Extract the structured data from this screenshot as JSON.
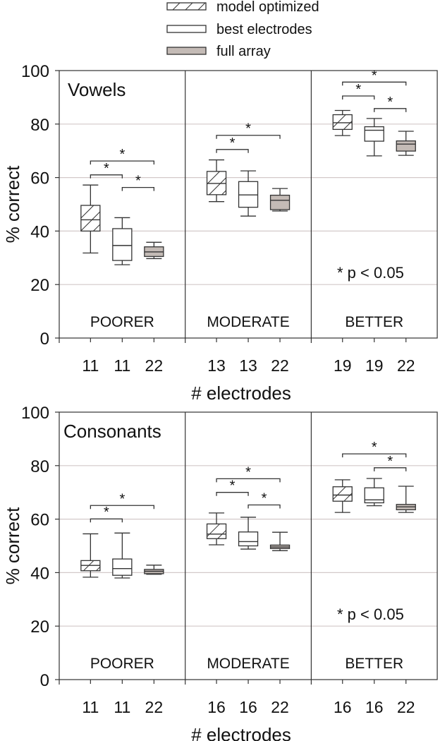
{
  "chart_data": {
    "type": "box",
    "legend": {
      "placement": "top-center",
      "entries": [
        {
          "name": "model optimized",
          "fill": "#ffffff",
          "hatch": true
        },
        {
          "name": "best electrodes",
          "fill": "#ffffff",
          "hatch": false
        },
        {
          "name": "full array",
          "fill": "#c4bbb6",
          "hatch": false
        }
      ]
    },
    "ylabel": "% correct",
    "xlabel": "# electrodes",
    "ylim": [
      0,
      100
    ],
    "yticks": [
      "0",
      "20",
      "40",
      "60",
      "80",
      "100"
    ],
    "grid": true,
    "grid_color": "#d3c9c9",
    "gray_fill": "#c4bbb6",
    "note": "* p < 0.05",
    "sig_mark": "*",
    "groups_order": [
      "POORER",
      "MODERATE",
      "BETTER"
    ],
    "panels": [
      {
        "title": "Vowels",
        "groups": [
          {
            "label": "POORER",
            "electrodes": [
              "11",
              "11",
              "22"
            ],
            "boxes": [
              [
                31.8,
                40.0,
                44.2,
                49.6,
                57.2
              ],
              [
                27.4,
                29.0,
                34.6,
                40.9,
                45.0
              ],
              [
                29.7,
                30.5,
                32.2,
                34.1,
                35.8
              ]
            ],
            "sig": [
              {
                "pair": [
                  0,
                  2
                ],
                "y": 66.2
              },
              {
                "pair": [
                  0,
                  1
                ],
                "y": 61.0
              },
              {
                "pair": [
                  1,
                  2
                ],
                "y": 56.3
              }
            ]
          },
          {
            "label": "MODERATE",
            "electrodes": [
              "13",
              "13",
              "22"
            ],
            "boxes": [
              [
                51.0,
                53.6,
                57.8,
                62.3,
                66.6
              ],
              [
                45.6,
                48.9,
                53.5,
                58.5,
                62.5
              ],
              [
                47.5,
                48.0,
                51.5,
                53.4,
                55.9
              ]
            ],
            "sig": [
              {
                "pair": [
                  0,
                  2
                ],
                "y": 75.8
              },
              {
                "pair": [
                  0,
                  1
                ],
                "y": 70.5
              }
            ]
          },
          {
            "label": "BETTER",
            "electrodes": [
              "19",
              "19",
              "22"
            ],
            "boxes": [
              [
                75.7,
                78.0,
                80.5,
                83.5,
                85.1
              ],
              [
                68.1,
                73.6,
                77.7,
                79.0,
                82.1
              ],
              [
                68.3,
                69.9,
                72.5,
                73.7,
                77.3
              ]
            ],
            "sig": [
              {
                "pair": [
                  0,
                  2
                ],
                "y": 95.7
              },
              {
                "pair": [
                  0,
                  1
                ],
                "y": 90.5
              },
              {
                "pair": [
                  1,
                  2
                ],
                "y": 85.8
              }
            ]
          }
        ]
      },
      {
        "title": "Consonants",
        "groups": [
          {
            "label": "POORER",
            "electrodes": [
              "11",
              "11",
              "22"
            ],
            "boxes": [
              [
                38.3,
                40.7,
                42.7,
                44.5,
                54.5
              ],
              [
                38.0,
                39.0,
                41.5,
                45.1,
                54.8
              ],
              [
                39.4,
                39.6,
                40.5,
                41.2,
                42.8
              ]
            ],
            "sig": [
              {
                "pair": [
                  0,
                  2
                ],
                "y": 65.1
              },
              {
                "pair": [
                  0,
                  1
                ],
                "y": 60.1
              }
            ]
          },
          {
            "label": "MODERATE",
            "electrodes": [
              "16",
              "16",
              "22"
            ],
            "boxes": [
              [
                50.4,
                52.7,
                54.4,
                58.2,
                62.3
              ],
              [
                48.8,
                50.0,
                51.6,
                55.2,
                60.7
              ],
              [
                48.2,
                49.0,
                49.6,
                50.3,
                55.1
              ]
            ],
            "sig": [
              {
                "pair": [
                  0,
                  2
                ],
                "y": 75.1
              },
              {
                "pair": [
                  0,
                  1
                ],
                "y": 70.0
              },
              {
                "pair": [
                  1,
                  2
                ],
                "y": 65.3
              }
            ]
          },
          {
            "label": "BETTER",
            "electrodes": [
              "16",
              "16",
              "22"
            ],
            "boxes": [
              [
                62.5,
                66.7,
                69.0,
                72.1,
                74.7
              ],
              [
                65.0,
                66.1,
                67.2,
                71.7,
                75.2
              ],
              [
                62.5,
                63.5,
                64.6,
                65.5,
                72.3
              ]
            ],
            "sig": [
              {
                "pair": [
                  0,
                  2
                ],
                "y": 84.4
              },
              {
                "pair": [
                  1,
                  2
                ],
                "y": 79.2
              }
            ]
          }
        ]
      }
    ]
  }
}
